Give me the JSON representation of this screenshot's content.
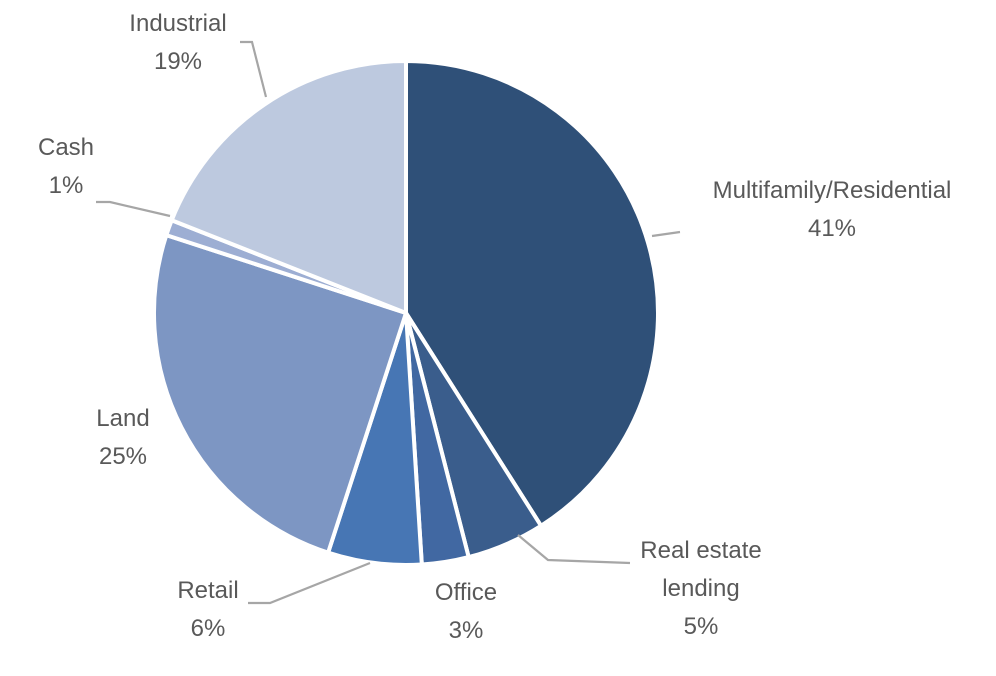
{
  "chart_data": {
    "type": "pie",
    "title": "",
    "start_angle_deg": 0,
    "direction": "clockwise",
    "legend": "none",
    "slices": [
      {
        "label": "Multifamily/Residential",
        "value": 41,
        "display": "41%",
        "color": "#2f5078"
      },
      {
        "label": "Real estate lending",
        "value": 5,
        "display": "5%",
        "color": "#3a5d8c"
      },
      {
        "label": "Office",
        "value": 3,
        "display": "3%",
        "color": "#4168a2"
      },
      {
        "label": "Retail",
        "value": 6,
        "display": "6%",
        "color": "#4776b4"
      },
      {
        "label": "Land",
        "value": 25,
        "display": "25%",
        "color": "#7d96c3"
      },
      {
        "label": "Cash",
        "value": 1,
        "display": "1%",
        "color": "#9daed3"
      },
      {
        "label": "Industrial",
        "value": 19,
        "display": "19%",
        "color": "#bdc9df"
      }
    ]
  }
}
